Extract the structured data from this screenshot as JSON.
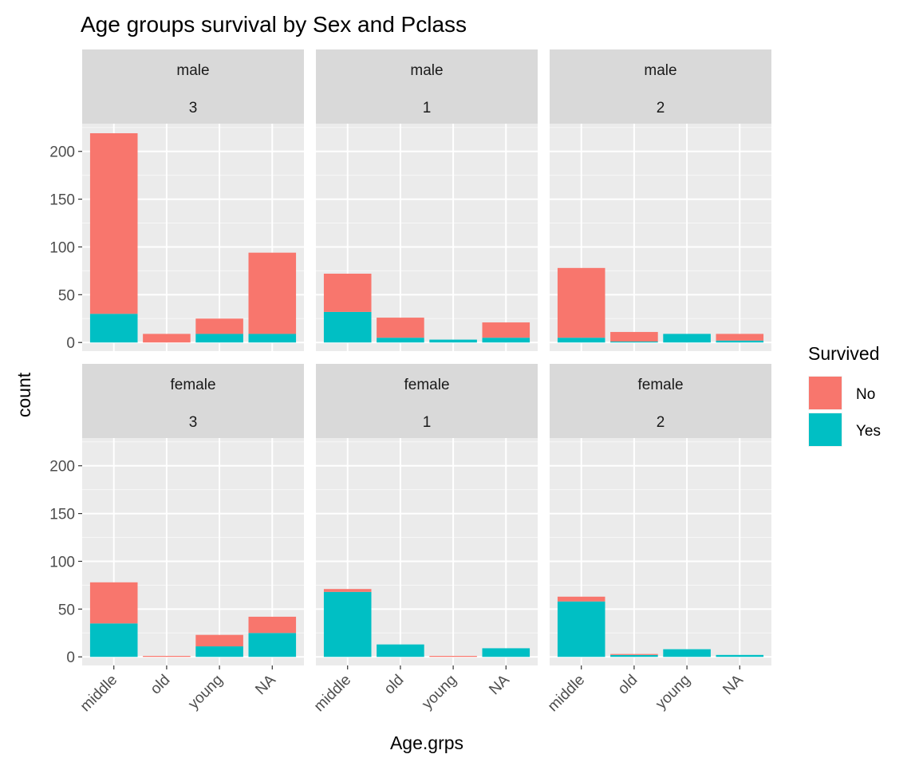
{
  "chart_data": {
    "type": "bar",
    "stacked": true,
    "title": "Age groups survival by Sex and Pclass",
    "xlabel": "Age.grps",
    "ylabel": "count",
    "categories": [
      "middle",
      "old",
      "young",
      "NA"
    ],
    "yticks": [
      0,
      50,
      100,
      150,
      200
    ],
    "ylim": [
      -9,
      229
    ],
    "grid": true,
    "legend": {
      "title": "Survived",
      "position": "right",
      "entries": [
        {
          "label": "No",
          "color": "#F8766D"
        },
        {
          "label": "Yes",
          "color": "#00BFC4"
        }
      ]
    },
    "panels": [
      {
        "sex": "male",
        "pclass": "3",
        "series": [
          {
            "name": "No",
            "values": [
              189,
              9,
              16,
              85
            ]
          },
          {
            "name": "Yes",
            "values": [
              30,
              0,
              9,
              9
            ]
          }
        ]
      },
      {
        "sex": "male",
        "pclass": "1",
        "series": [
          {
            "name": "No",
            "values": [
              40,
              21,
              0,
              16
            ]
          },
          {
            "name": "Yes",
            "values": [
              32,
              5,
              3,
              5
            ]
          }
        ]
      },
      {
        "sex": "male",
        "pclass": "2",
        "series": [
          {
            "name": "No",
            "values": [
              73,
              10,
              0,
              7
            ]
          },
          {
            "name": "Yes",
            "values": [
              5,
              1,
              9,
              2
            ]
          }
        ]
      },
      {
        "sex": "female",
        "pclass": "3",
        "series": [
          {
            "name": "No",
            "values": [
              43,
              1,
              12,
              17
            ]
          },
          {
            "name": "Yes",
            "values": [
              35,
              0,
              11,
              25
            ]
          }
        ]
      },
      {
        "sex": "female",
        "pclass": "1",
        "series": [
          {
            "name": "No",
            "values": [
              3,
              0,
              1,
              0
            ]
          },
          {
            "name": "Yes",
            "values": [
              68,
              13,
              0,
              9
            ]
          }
        ]
      },
      {
        "sex": "female",
        "pclass": "2",
        "series": [
          {
            "name": "No",
            "values": [
              5,
              1,
              0,
              0
            ]
          },
          {
            "name": "Yes",
            "values": [
              58,
              2,
              8,
              2
            ]
          }
        ]
      }
    ]
  }
}
